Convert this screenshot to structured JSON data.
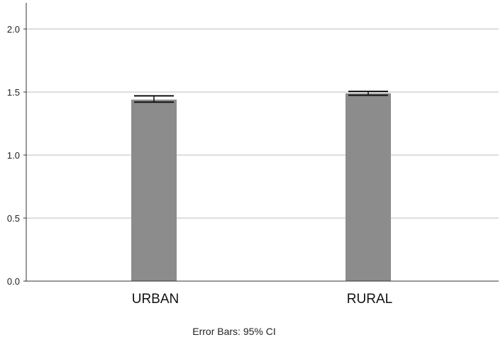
{
  "chart_data": {
    "type": "bar",
    "categories": [
      "URBAN",
      "RURAL"
    ],
    "values": [
      1.44,
      1.49
    ],
    "error_bars": [
      {
        "low": 1.42,
        "high": 1.47
      },
      {
        "low": 1.475,
        "high": 1.505
      }
    ],
    "ylim": [
      0,
      2.0
    ],
    "yticks": [
      "0.0",
      "0.5",
      "1.0",
      "1.5",
      "2.0"
    ],
    "grid": true,
    "bar_color": "#8c8c8c",
    "grid_color": "#bdbdbd",
    "title": "",
    "xlabel": "",
    "ylabel": "",
    "footnote": "Error Bars: 95% CI"
  }
}
